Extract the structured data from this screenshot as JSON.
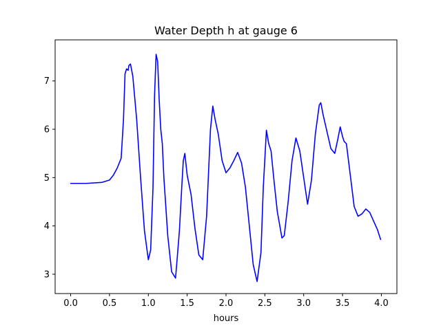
{
  "chart_data": {
    "type": "line",
    "title": "Water Depth h at gauge 6",
    "xlabel": "hours",
    "ylabel": "",
    "xlim": [
      -0.2,
      4.2
    ],
    "ylim": [
      2.6,
      7.85
    ],
    "xticks": [
      0.0,
      0.5,
      1.0,
      1.5,
      2.0,
      2.5,
      3.0,
      3.5,
      4.0
    ],
    "xtick_labels": [
      "0.0",
      "0.5",
      "1.0",
      "1.5",
      "2.0",
      "2.5",
      "3.0",
      "3.5",
      "4.0"
    ],
    "yticks": [
      3,
      4,
      5,
      6,
      7
    ],
    "ytick_labels": [
      "3",
      "4",
      "5",
      "6",
      "7"
    ],
    "grid": false,
    "series": [
      {
        "color": "#0000ff",
        "x": [
          0.0,
          0.2,
          0.4,
          0.5,
          0.55,
          0.6,
          0.65,
          0.68,
          0.7,
          0.72,
          0.74,
          0.75,
          0.77,
          0.8,
          0.85,
          0.9,
          0.95,
          1.0,
          1.03,
          1.06,
          1.08,
          1.1,
          1.12,
          1.14,
          1.16,
          1.18,
          1.2,
          1.25,
          1.3,
          1.35,
          1.37,
          1.4,
          1.43,
          1.45,
          1.47,
          1.5,
          1.55,
          1.6,
          1.65,
          1.7,
          1.75,
          1.8,
          1.83,
          1.86,
          1.9,
          1.95,
          2.0,
          2.05,
          2.1,
          2.15,
          2.2,
          2.25,
          2.3,
          2.35,
          2.4,
          2.45,
          2.48,
          2.52,
          2.55,
          2.58,
          2.62,
          2.66,
          2.72,
          2.75,
          2.8,
          2.85,
          2.9,
          2.95,
          3.0,
          3.05,
          3.1,
          3.15,
          3.2,
          3.22,
          3.25,
          3.3,
          3.35,
          3.4,
          3.44,
          3.47,
          3.5,
          3.52,
          3.55,
          3.6,
          3.65,
          3.7,
          3.75,
          3.8,
          3.85,
          3.9,
          3.95,
          3.99
        ],
        "values": [
          4.88,
          4.88,
          4.9,
          4.95,
          5.05,
          5.2,
          5.4,
          6.2,
          7.15,
          7.25,
          7.22,
          7.32,
          7.35,
          7.1,
          6.2,
          5.0,
          3.9,
          3.3,
          3.5,
          4.8,
          6.7,
          7.55,
          7.4,
          6.6,
          6.0,
          5.7,
          5.0,
          3.8,
          3.05,
          2.92,
          3.3,
          3.9,
          4.8,
          5.35,
          5.5,
          5.05,
          4.65,
          3.95,
          3.4,
          3.3,
          4.2,
          6.0,
          6.48,
          6.2,
          5.9,
          5.35,
          5.1,
          5.2,
          5.35,
          5.52,
          5.3,
          4.8,
          4.0,
          3.2,
          2.85,
          3.45,
          4.8,
          5.98,
          5.7,
          5.55,
          4.9,
          4.3,
          3.75,
          3.8,
          4.5,
          5.35,
          5.82,
          5.55,
          5.0,
          4.45,
          4.95,
          5.9,
          6.5,
          6.55,
          6.3,
          5.95,
          5.6,
          5.5,
          5.8,
          6.05,
          5.85,
          5.75,
          5.7,
          5.05,
          4.4,
          4.2,
          4.25,
          4.35,
          4.28,
          4.1,
          3.92,
          3.72
        ]
      }
    ]
  }
}
